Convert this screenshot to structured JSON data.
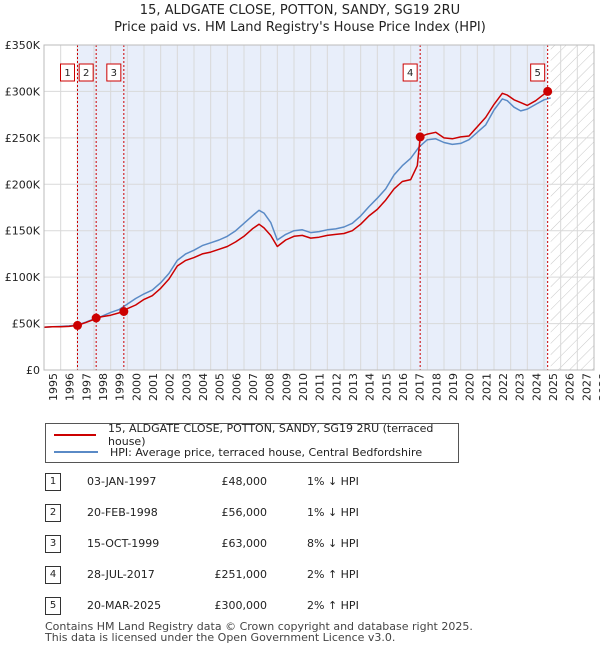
{
  "chart_data": {
    "type": "line",
    "title": "15, ALDGATE CLOSE, POTTON, SANDY, SG19 2RU",
    "subtitle": "Price paid vs. HM Land Registry's House Price Index (HPI)",
    "xlim": [
      1995,
      2028
    ],
    "ylim": [
      0,
      350000
    ],
    "y_ticks": [
      0,
      50000,
      100000,
      150000,
      200000,
      250000,
      300000,
      350000
    ],
    "y_tick_labels": [
      "£0",
      "£50K",
      "£100K",
      "£150K",
      "£200K",
      "£250K",
      "£300K",
      "£350K"
    ],
    "x_ticks": [
      1995,
      1996,
      1997,
      1998,
      1999,
      2000,
      2001,
      2002,
      2003,
      2004,
      2005,
      2006,
      2007,
      2008,
      2009,
      2010,
      2011,
      2012,
      2013,
      2014,
      2015,
      2016,
      2017,
      2018,
      2019,
      2020,
      2021,
      2022,
      2023,
      2024,
      2025,
      2026,
      2027,
      2028
    ],
    "x_tick_labels": [
      "1995",
      "1996",
      "1997",
      "1998",
      "1999",
      "2000",
      "2001",
      "2002",
      "2003",
      "2004",
      "2005",
      "2006",
      "2007",
      "2008",
      "2009",
      "2010",
      "2011",
      "2012",
      "2013",
      "2014",
      "2015",
      "2016",
      "2017",
      "2018",
      "2019",
      "2020",
      "2021",
      "2022",
      "2023",
      "2024",
      "2025",
      "2026",
      "2027",
      "2028"
    ],
    "shaded_period": [
      1997.0,
      2025.2
    ],
    "hatched_future_from": 2025.4,
    "grid": true,
    "series": [
      {
        "name": "15, ALDGATE CLOSE, POTTON, SANDY, SG19 2RU (terraced house)",
        "color": "#cc0000",
        "points": [
          [
            1995.0,
            46000
          ],
          [
            1995.5,
            46500
          ],
          [
            1996.0,
            46500
          ],
          [
            1996.5,
            47000
          ],
          [
            1997.01,
            48000
          ],
          [
            1997.5,
            51000
          ],
          [
            1998.0,
            54500
          ],
          [
            1998.13,
            56000
          ],
          [
            1998.5,
            57500
          ],
          [
            1999.0,
            59000
          ],
          [
            1999.5,
            61500
          ],
          [
            1999.79,
            63000
          ],
          [
            2000.0,
            66000
          ],
          [
            2000.5,
            70000
          ],
          [
            2001.0,
            76000
          ],
          [
            2001.5,
            80000
          ],
          [
            2002.0,
            88000
          ],
          [
            2002.5,
            98000
          ],
          [
            2003.0,
            112000
          ],
          [
            2003.5,
            118000
          ],
          [
            2004.0,
            121000
          ],
          [
            2004.5,
            125000
          ],
          [
            2005.0,
            127000
          ],
          [
            2005.5,
            130000
          ],
          [
            2006.0,
            133000
          ],
          [
            2006.5,
            138000
          ],
          [
            2007.0,
            144000
          ],
          [
            2007.5,
            152000
          ],
          [
            2007.9,
            157000
          ],
          [
            2008.2,
            153000
          ],
          [
            2008.6,
            145000
          ],
          [
            2009.0,
            133000
          ],
          [
            2009.5,
            140000
          ],
          [
            2010.0,
            144000
          ],
          [
            2010.5,
            145000
          ],
          [
            2011.0,
            142000
          ],
          [
            2011.5,
            143000
          ],
          [
            2012.0,
            145000
          ],
          [
            2012.5,
            146000
          ],
          [
            2013.0,
            147000
          ],
          [
            2013.5,
            150000
          ],
          [
            2014.0,
            157000
          ],
          [
            2014.5,
            166000
          ],
          [
            2015.0,
            173000
          ],
          [
            2015.5,
            183000
          ],
          [
            2016.0,
            195000
          ],
          [
            2016.5,
            203000
          ],
          [
            2017.0,
            205000
          ],
          [
            2017.4,
            220000
          ],
          [
            2017.57,
            251000
          ],
          [
            2018.0,
            254000
          ],
          [
            2018.5,
            256000
          ],
          [
            2019.0,
            250000
          ],
          [
            2019.5,
            249000
          ],
          [
            2020.0,
            251000
          ],
          [
            2020.5,
            252000
          ],
          [
            2021.0,
            262000
          ],
          [
            2021.5,
            272000
          ],
          [
            2022.0,
            286000
          ],
          [
            2022.5,
            298000
          ],
          [
            2022.8,
            296000
          ],
          [
            2023.2,
            291000
          ],
          [
            2023.6,
            288000
          ],
          [
            2024.0,
            285000
          ],
          [
            2024.5,
            290000
          ],
          [
            2025.0,
            297000
          ],
          [
            2025.22,
            300000
          ],
          [
            2025.4,
            301000
          ]
        ]
      },
      {
        "name": "HPI: Average price, terraced house, Central Bedfordshire",
        "color": "#5a8ac6",
        "points": [
          [
            1995.0,
            46000
          ],
          [
            1995.5,
            46500
          ],
          [
            1996.0,
            47000
          ],
          [
            1996.5,
            47500
          ],
          [
            1997.0,
            48500
          ],
          [
            1997.5,
            51500
          ],
          [
            1998.0,
            55000
          ],
          [
            1998.5,
            58000
          ],
          [
            1999.0,
            62000
          ],
          [
            1999.5,
            65000
          ],
          [
            2000.0,
            71000
          ],
          [
            2000.5,
            77000
          ],
          [
            2001.0,
            82000
          ],
          [
            2001.5,
            86000
          ],
          [
            2002.0,
            94000
          ],
          [
            2002.5,
            104000
          ],
          [
            2003.0,
            118000
          ],
          [
            2003.5,
            125000
          ],
          [
            2004.0,
            129000
          ],
          [
            2004.5,
            134000
          ],
          [
            2005.0,
            137000
          ],
          [
            2005.5,
            140000
          ],
          [
            2006.0,
            144000
          ],
          [
            2006.5,
            150000
          ],
          [
            2007.0,
            158000
          ],
          [
            2007.5,
            166000
          ],
          [
            2007.9,
            172000
          ],
          [
            2008.2,
            169000
          ],
          [
            2008.6,
            159000
          ],
          [
            2009.0,
            140000
          ],
          [
            2009.5,
            146000
          ],
          [
            2010.0,
            150000
          ],
          [
            2010.5,
            151000
          ],
          [
            2011.0,
            148000
          ],
          [
            2011.5,
            149000
          ],
          [
            2012.0,
            151000
          ],
          [
            2012.5,
            152000
          ],
          [
            2013.0,
            154000
          ],
          [
            2013.5,
            158000
          ],
          [
            2014.0,
            166000
          ],
          [
            2014.5,
            176000
          ],
          [
            2015.0,
            185000
          ],
          [
            2015.5,
            195000
          ],
          [
            2016.0,
            210000
          ],
          [
            2016.5,
            220000
          ],
          [
            2017.0,
            228000
          ],
          [
            2017.5,
            240000
          ],
          [
            2018.0,
            248000
          ],
          [
            2018.5,
            249000
          ],
          [
            2019.0,
            245000
          ],
          [
            2019.5,
            243000
          ],
          [
            2020.0,
            244000
          ],
          [
            2020.5,
            248000
          ],
          [
            2021.0,
            256000
          ],
          [
            2021.5,
            264000
          ],
          [
            2022.0,
            280000
          ],
          [
            2022.5,
            292000
          ],
          [
            2022.8,
            290000
          ],
          [
            2023.2,
            283000
          ],
          [
            2023.6,
            279000
          ],
          [
            2024.0,
            281000
          ],
          [
            2024.5,
            286000
          ],
          [
            2025.0,
            291000
          ],
          [
            2025.4,
            293000
          ]
        ]
      }
    ],
    "sale_markers": [
      {
        "label": "1",
        "x": 1997.01,
        "y": 48000
      },
      {
        "label": "2",
        "x": 1998.13,
        "y": 56000
      },
      {
        "label": "3",
        "x": 1999.79,
        "y": 63000
      },
      {
        "label": "4",
        "x": 2017.57,
        "y": 251000
      },
      {
        "label": "5",
        "x": 2025.22,
        "y": 300000
      }
    ]
  },
  "legend": {
    "property": "15, ALDGATE CLOSE, POTTON, SANDY, SG19 2RU (terraced house)",
    "hpi": "HPI: Average price, terraced house, Central Bedfordshire"
  },
  "sales": [
    {
      "num": "1",
      "date": "03-JAN-1997",
      "price": "£48,000",
      "hpi": "1% ↓ HPI"
    },
    {
      "num": "2",
      "date": "20-FEB-1998",
      "price": "£56,000",
      "hpi": "1% ↓ HPI"
    },
    {
      "num": "3",
      "date": "15-OCT-1999",
      "price": "£63,000",
      "hpi": "8% ↓ HPI"
    },
    {
      "num": "4",
      "date": "28-JUL-2017",
      "price": "£251,000",
      "hpi": "2% ↑ HPI"
    },
    {
      "num": "5",
      "date": "20-MAR-2025",
      "price": "£300,000",
      "hpi": "2% ↑ HPI"
    }
  ],
  "footer": {
    "line1": "Contains HM Land Registry data © Crown copyright and database right 2025.",
    "line2": "This data is licensed under the Open Government Licence v3.0."
  }
}
